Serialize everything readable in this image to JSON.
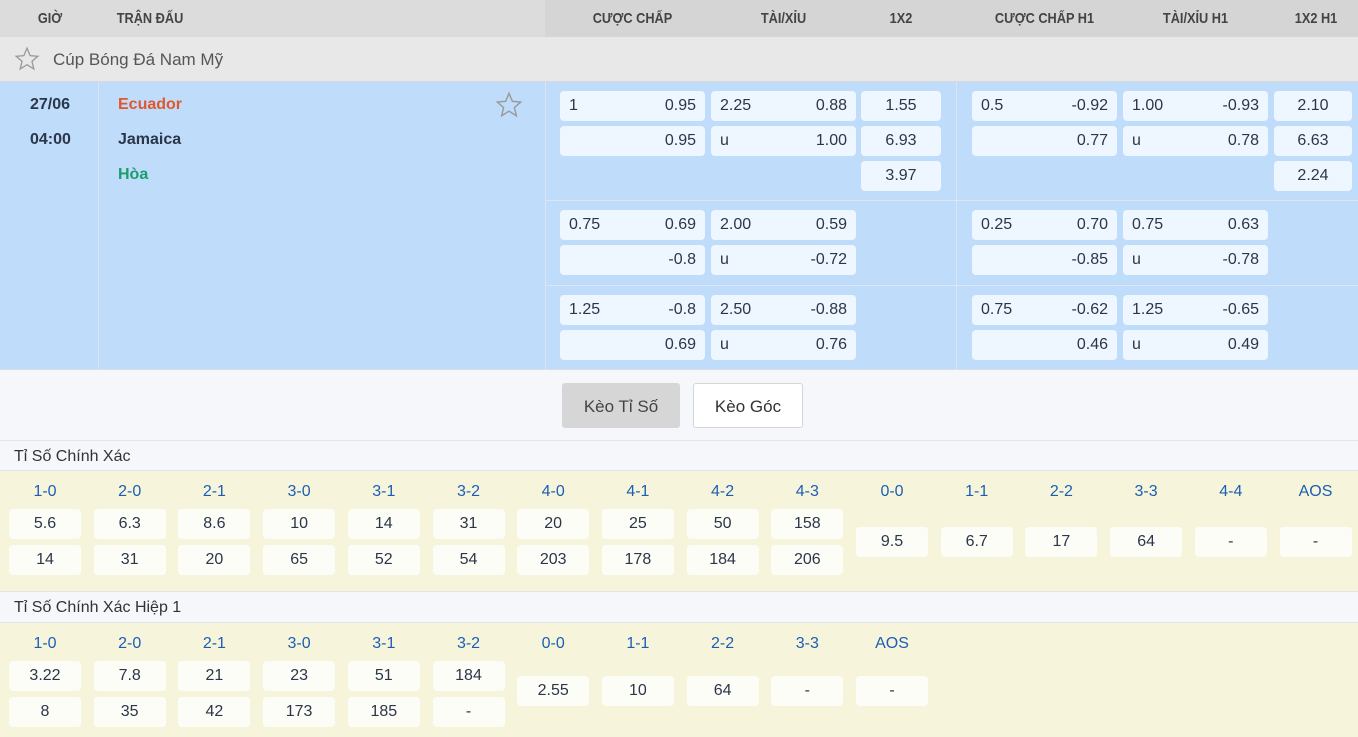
{
  "header": {
    "time": "GIỜ",
    "match": "TRẬN ĐẤU",
    "handicap": "CƯỢC CHẤP",
    "over_under": "TÀI/XỈU",
    "one_x_two": "1X2",
    "handicap_h1": "CƯỢC CHẤP H1",
    "over_under_h1": "TÀI/XỈU H1",
    "one_x_two_h1": "1X2 H1"
  },
  "league": {
    "name": "Cúp Bóng Đá Nam Mỹ",
    "icon": "star-outline-icon"
  },
  "match": {
    "date": "27/06",
    "time": "04:00",
    "home": "Ecuador",
    "away": "Jamaica",
    "draw": "Hòa",
    "colors": {
      "home": "#e2572b",
      "away": "#2b3648",
      "draw": "#1a9e6e"
    },
    "odds": [
      {
        "hdp": {
          "line": "1",
          "home": "0.95",
          "away": "0.95"
        },
        "ou": {
          "line": "2.25",
          "over": "0.88",
          "u": "u",
          "under": "1.00"
        },
        "x12": [
          "1.55",
          "6.93",
          "3.97"
        ],
        "hdp_h1": {
          "line": "0.5",
          "home": "-0.92",
          "away": "0.77"
        },
        "ou_h1": {
          "line": "1.00",
          "over": "-0.93",
          "u": "u",
          "under": "0.78"
        },
        "x12_h1": [
          "2.10",
          "6.63",
          "2.24"
        ]
      },
      {
        "hdp": {
          "line": "0.75",
          "home": "0.69",
          "away": "-0.8"
        },
        "ou": {
          "line": "2.00",
          "over": "0.59",
          "u": "u",
          "under": "-0.72"
        },
        "hdp_h1": {
          "line": "0.25",
          "home": "0.70",
          "away": "-0.85"
        },
        "ou_h1": {
          "line": "0.75",
          "over": "0.63",
          "u": "u",
          "under": "-0.78"
        }
      },
      {
        "hdp": {
          "line": "1.25",
          "home": "-0.8",
          "away": "0.69"
        },
        "ou": {
          "line": "2.50",
          "over": "-0.88",
          "u": "u",
          "under": "0.76"
        },
        "hdp_h1": {
          "line": "0.75",
          "home": "-0.62",
          "away": "0.46"
        },
        "ou_h1": {
          "line": "1.25",
          "over": "-0.65",
          "u": "u",
          "under": "0.49"
        }
      }
    ]
  },
  "tabs": {
    "correct_score": "Kèo Tỉ Số",
    "corners": "Kèo Góc",
    "active": "correct_score"
  },
  "correct_score": {
    "title": "Tỉ Số Chính Xác",
    "pairs": [
      [
        "1-0",
        "5.6",
        "14"
      ],
      [
        "2-0",
        "6.3",
        "31"
      ],
      [
        "2-1",
        "8.6",
        "20"
      ],
      [
        "3-0",
        "10",
        "65"
      ],
      [
        "3-1",
        "14",
        "52"
      ],
      [
        "3-2",
        "31",
        "54"
      ],
      [
        "4-0",
        "20",
        "203"
      ],
      [
        "4-1",
        "25",
        "178"
      ],
      [
        "4-2",
        "50",
        "184"
      ],
      [
        "4-3",
        "158",
        "206"
      ]
    ],
    "singles": [
      [
        "0-0",
        "9.5"
      ],
      [
        "1-1",
        "6.7"
      ],
      [
        "2-2",
        "17"
      ],
      [
        "3-3",
        "64"
      ],
      [
        "4-4",
        "-"
      ],
      [
        "AOS",
        "-"
      ]
    ]
  },
  "correct_score_h1": {
    "title": "Tỉ Số Chính Xác Hiệp 1",
    "pairs": [
      [
        "1-0",
        "3.22",
        "8"
      ],
      [
        "2-0",
        "7.8",
        "35"
      ],
      [
        "2-1",
        "21",
        "42"
      ],
      [
        "3-0",
        "23",
        "173"
      ],
      [
        "3-1",
        "51",
        "185"
      ],
      [
        "3-2",
        "184",
        "-"
      ]
    ],
    "singles": [
      [
        "0-0",
        "2.55"
      ],
      [
        "1-1",
        "10"
      ],
      [
        "2-2",
        "64"
      ],
      [
        "3-3",
        "-"
      ],
      [
        "AOS",
        "-"
      ]
    ]
  }
}
